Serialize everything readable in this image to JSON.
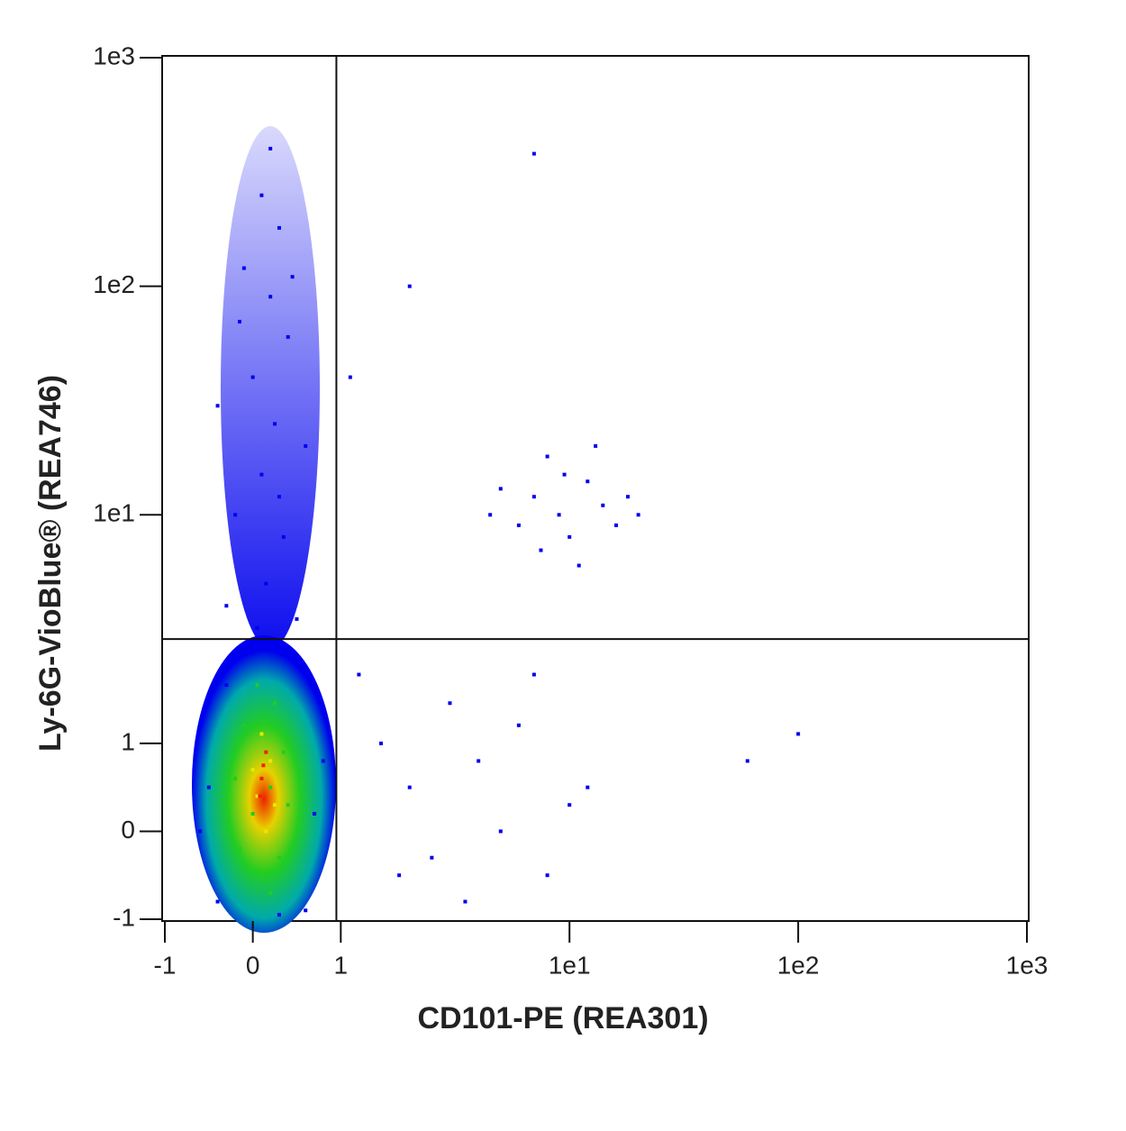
{
  "chart_data": {
    "type": "scatter",
    "x_label": "CD101-PE (REA301)",
    "y_label": "Ly-6G-VioBlue® (REA746)",
    "xlim": [
      -1,
      1000
    ],
    "ylim": [
      -1,
      1000
    ],
    "xticks": [
      -1,
      0,
      1,
      {
        "value": 10,
        "label": "1e1"
      },
      {
        "value": 100,
        "label": "1e2"
      },
      {
        "value": 1000,
        "label": "1e3"
      }
    ],
    "yticks": [
      -1,
      0,
      1,
      {
        "value": 10,
        "label": "1e1"
      },
      {
        "value": 100,
        "label": "1e2"
      },
      {
        "value": 1000,
        "label": "1e3"
      }
    ],
    "quadrant_x": 0.95,
    "quadrant_y": 2.86,
    "series": [
      {
        "color": "#0000ee",
        "x": [
          0.1,
          0.3,
          -0.1,
          0.2,
          0.4,
          0.0,
          0.25,
          0.1,
          -0.2,
          0.35,
          0.15,
          -0.3,
          0.5,
          0.05,
          0.6,
          -0.4,
          0.2,
          0.45,
          -0.15,
          0.3,
          7,
          9,
          12,
          10,
          6,
          14,
          8,
          11,
          5,
          16,
          13,
          7.5,
          9.5,
          18,
          4.5,
          1.5,
          2,
          3,
          2.5,
          4,
          5,
          6,
          8,
          1.2,
          3.5,
          10,
          1.8,
          7,
          12,
          60,
          100,
          -0.5,
          0.7,
          -0.4,
          0.6,
          -0.3,
          0.5,
          0.8,
          -0.6,
          0.0,
          0.3,
          7,
          2,
          20,
          1.1
        ],
        "values": [
          250,
          180,
          120,
          90,
          60,
          40,
          25,
          15,
          10,
          8,
          5,
          4,
          3.5,
          3.2,
          20,
          30,
          400,
          110,
          70,
          12,
          12,
          10,
          14,
          8,
          9,
          11,
          18,
          6,
          13,
          9,
          20,
          7,
          15,
          12,
          10,
          1,
          0.5,
          1.5,
          -0.3,
          0.8,
          0,
          1.2,
          -0.5,
          2,
          -0.8,
          0.3,
          -0.5,
          2,
          0.5,
          0.8,
          1.1,
          0.5,
          0.2,
          -0.8,
          -0.9,
          1.8,
          2.2,
          0.8,
          0,
          2.5,
          -0.95,
          380,
          100,
          10,
          40
        ]
      },
      {
        "color": "#22cc22",
        "x": [
          0.0,
          0.2,
          -0.1,
          0.3,
          0.1,
          0.25,
          -0.2,
          0.35,
          -0.15,
          0.05,
          0.2,
          0.4
        ],
        "values": [
          0.2,
          0.5,
          1.2,
          -0.3,
          -0.5,
          1.5,
          0.6,
          0.9,
          -0.2,
          1.8,
          -0.7,
          0.3
        ]
      },
      {
        "color": "#e8e800",
        "x": [
          0.05,
          0.2,
          0.1,
          0.15,
          0.0,
          0.25
        ],
        "values": [
          0.4,
          0.8,
          1.1,
          0.0,
          0.7,
          0.3
        ]
      },
      {
        "color": "#ee2200",
        "x": [
          0.1,
          0.15,
          0.08,
          0.12
        ],
        "values": [
          0.6,
          0.9,
          0.4,
          0.75
        ]
      }
    ]
  }
}
